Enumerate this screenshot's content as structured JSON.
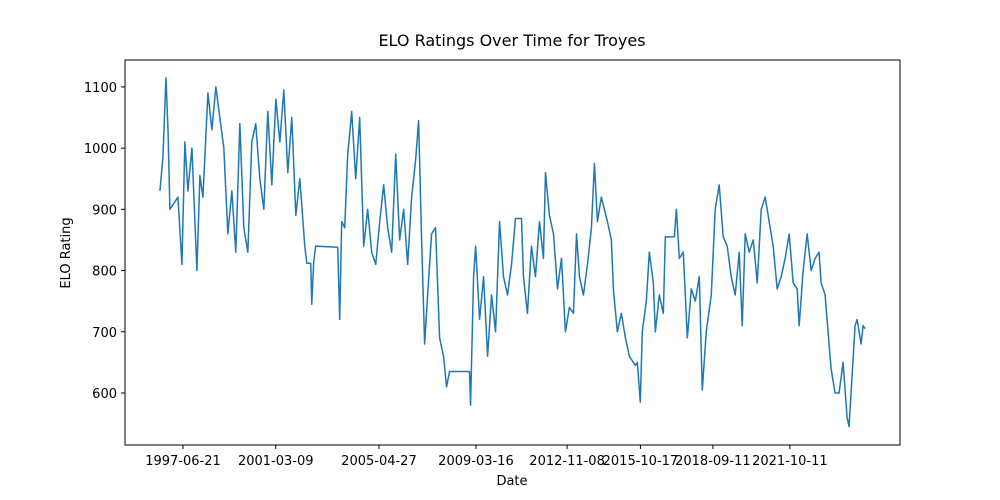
{
  "chart_data": {
    "type": "line",
    "title": "ELO Ratings Over Time for Troyes",
    "xlabel": "Date",
    "ylabel": "ELO Rating",
    "color": "#1f77b4",
    "xlim": [
      "1995-02-24",
      "2026-03-10"
    ],
    "ylim": [
      515,
      1144
    ],
    "xticks": [
      "1997-06-21",
      "2001-03-09",
      "2005-04-27",
      "2009-03-16",
      "2012-11-08",
      "2015-10-17",
      "2018-09-11",
      "2021-10-11"
    ],
    "yticks": [
      600,
      700,
      800,
      900,
      1000,
      1100
    ],
    "x": [
      "1996-07-19",
      "1996-09-01",
      "1996-10-15",
      "1996-11-14",
      "1996-12-12",
      "1997-04-08",
      "1997-06-06",
      "1997-07-19",
      "1997-09-01",
      "1997-10-30",
      "1998-01-11",
      "1998-02-24",
      "1998-04-09",
      "1998-06-21",
      "1998-08-18",
      "1998-10-15",
      "1998-12-12",
      "1999-02-09",
      "1999-04-08",
      "1999-06-06",
      "1999-08-03",
      "1999-10-01",
      "1999-11-28",
      "2000-01-26",
      "2000-03-24",
      "2000-05-21",
      "2000-07-19",
      "2000-09-16",
      "2000-11-13",
      "2001-01-11",
      "2001-03-11",
      "2001-05-08",
      "2001-07-05",
      "2001-09-02",
      "2001-10-30",
      "2001-12-28",
      "2002-02-24",
      "2002-05-08",
      "2002-06-06",
      "2002-08-03",
      "2002-08-18",
      "2002-09-16",
      "2002-10-15",
      "2003-09-02",
      "2003-10-01",
      "2003-10-30",
      "2003-12-13",
      "2004-01-26",
      "2004-03-24",
      "2004-05-22",
      "2004-07-19",
      "2004-09-16",
      "2004-11-13",
      "2005-01-11",
      "2005-03-11",
      "2005-05-08",
      "2005-07-05",
      "2005-09-02",
      "2005-10-30",
      "2005-12-28",
      "2006-02-24",
      "2006-04-23",
      "2006-06-21",
      "2006-08-18",
      "2006-10-15",
      "2006-11-28",
      "2007-01-11",
      "2007-02-24",
      "2007-04-09",
      "2007-06-06",
      "2007-08-03",
      "2007-10-01",
      "2007-11-28",
      "2008-01-11",
      "2008-02-24",
      "2008-12-12",
      "2008-12-27",
      "2009-02-09",
      "2009-03-11",
      "2009-05-08",
      "2009-07-05",
      "2009-09-02",
      "2009-10-30",
      "2009-12-28",
      "2010-02-24",
      "2010-04-23",
      "2010-06-21",
      "2010-08-18",
      "2010-10-15",
      "2011-01-11",
      "2011-02-09",
      "2011-04-08",
      "2011-06-06",
      "2011-08-03",
      "2011-10-01",
      "2011-11-28",
      "2011-12-28",
      "2012-02-24",
      "2012-04-23",
      "2012-06-21",
      "2012-08-18",
      "2012-10-15",
      "2012-12-12",
      "2013-02-09",
      "2013-03-26",
      "2013-05-08",
      "2013-07-05",
      "2013-09-02",
      "2013-10-30",
      "2013-12-13",
      "2014-01-26",
      "2014-03-24",
      "2014-06-21",
      "2014-08-18",
      "2014-09-16",
      "2014-11-13",
      "2015-01-11",
      "2015-03-11",
      "2015-05-08",
      "2015-08-03",
      "2015-09-02",
      "2015-10-15",
      "2015-11-13",
      "2016-01-11",
      "2016-02-24",
      "2016-04-23",
      "2016-05-22",
      "2016-07-19",
      "2016-09-16",
      "2016-10-15",
      "2017-02-24",
      "2017-03-26",
      "2017-05-08",
      "2017-07-05",
      "2017-09-02",
      "2017-10-30",
      "2017-12-28",
      "2018-02-24",
      "2018-04-09",
      "2018-06-06",
      "2018-08-18",
      "2018-10-15",
      "2018-12-12",
      "2019-02-09",
      "2019-04-08",
      "2019-06-06",
      "2019-08-03",
      "2019-10-01",
      "2019-11-14",
      "2019-12-28",
      "2020-02-24",
      "2020-04-23",
      "2020-06-21",
      "2020-08-18",
      "2020-10-15",
      "2020-12-12",
      "2021-02-09",
      "2021-04-08",
      "2021-06-06",
      "2021-08-03",
      "2021-10-01",
      "2021-11-28",
      "2022-01-26",
      "2022-02-24",
      "2022-04-23",
      "2022-06-21",
      "2022-08-18",
      "2022-10-15",
      "2022-12-12",
      "2023-01-11",
      "2023-03-11",
      "2023-04-08",
      "2023-06-06",
      "2023-08-03",
      "2023-10-01",
      "2023-11-28",
      "2024-01-26",
      "2024-02-24",
      "2024-03-24",
      "2024-05-22",
      "2024-06-21",
      "2024-08-18",
      "2024-09-16",
      "2024-10-15"
    ],
    "values": [
      930,
      985,
      1115,
      1030,
      900,
      920,
      810,
      1010,
      930,
      1000,
      800,
      955,
      920,
      1090,
      1030,
      1100,
      1050,
      1000,
      860,
      930,
      830,
      1040,
      870,
      830,
      1010,
      1040,
      950,
      900,
      1060,
      940,
      1080,
      1010,
      1095,
      960,
      1050,
      890,
      950,
      840,
      812,
      812,
      745,
      815,
      840,
      838,
      720,
      880,
      870,
      990,
      1060,
      950,
      1050,
      840,
      900,
      830,
      810,
      880,
      940,
      870,
      830,
      990,
      850,
      900,
      810,
      920,
      980,
      1045,
      850,
      680,
      760,
      860,
      870,
      690,
      660,
      610,
      635,
      635,
      580,
      790,
      840,
      720,
      790,
      660,
      760,
      700,
      880,
      790,
      760,
      810,
      885,
      885,
      790,
      730,
      840,
      790,
      880,
      820,
      960,
      890,
      860,
      770,
      820,
      700,
      740,
      730,
      860,
      790,
      760,
      810,
      870,
      975,
      880,
      920,
      880,
      850,
      770,
      700,
      730,
      690,
      660,
      645,
      650,
      585,
      700,
      750,
      830,
      780,
      700,
      760,
      730,
      855,
      855,
      900,
      820,
      830,
      690,
      770,
      750,
      790,
      605,
      700,
      760,
      900,
      940,
      855,
      840,
      790,
      760,
      830,
      710,
      860,
      830,
      850,
      780,
      900,
      920,
      880,
      840,
      770,
      790,
      820,
      860,
      780,
      770,
      710,
      800,
      860,
      800,
      820,
      830,
      780,
      760,
      720,
      640,
      600,
      600,
      650,
      560,
      545,
      600,
      710,
      720,
      680,
      710,
      705
    ]
  }
}
